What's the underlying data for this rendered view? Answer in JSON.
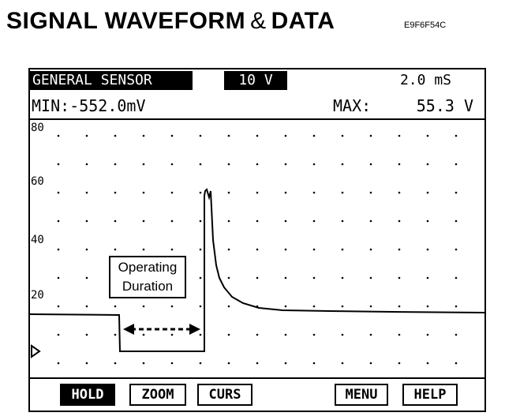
{
  "doc": {
    "title": "SIGNAL WAVEFORM",
    "amp": "&",
    "title2": "DATA",
    "code": "E9F6F54C"
  },
  "scope": {
    "sensor_label": "GENERAL SENSOR",
    "volt_range": "10 V",
    "timebase": "2.0 mS",
    "min": "MIN:-552.0mV",
    "max_label": "MAX:",
    "max_value": "55.3 V",
    "y_ticks": [
      "80",
      "60",
      "40",
      "20"
    ],
    "annotation": [
      "Operating",
      "Duration"
    ],
    "trigger_marker": "trigger-arrow-icon"
  },
  "buttons": {
    "hold": "HOLD",
    "zoom": "ZOOM",
    "curs": "CURS",
    "menu": "MENU",
    "help": "HELP"
  }
}
